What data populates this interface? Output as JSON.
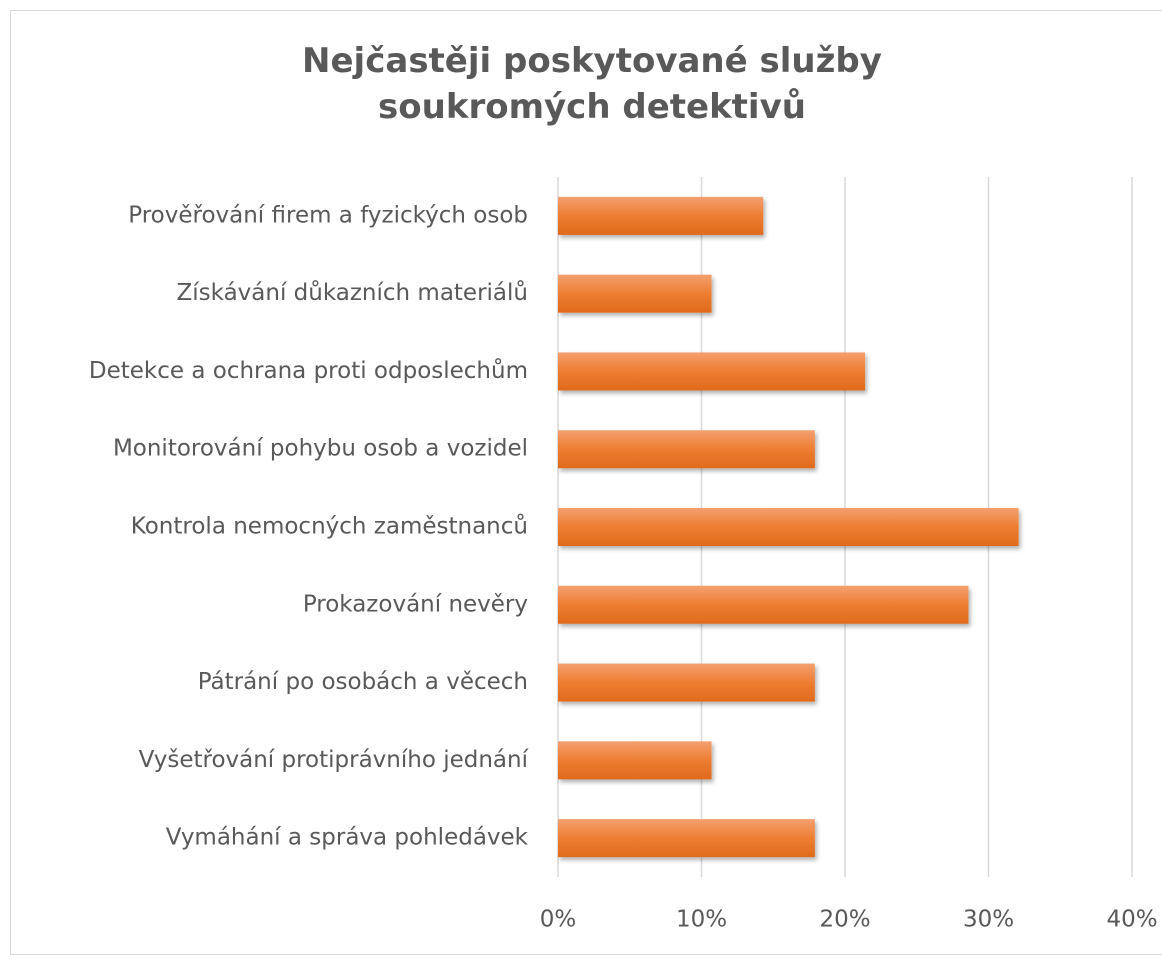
{
  "chart_data": {
    "type": "bar",
    "orientation": "horizontal",
    "title": "Nejčastěji poskytované služby soukromých detektivů",
    "categories": [
      "Prověřování firem a fyzických osob",
      "Získávání důkazních materiálů",
      "Detekce a ochrana proti odposlechům",
      "Monitorování pohybu osob a vozidel",
      "Kontrola nemocných zaměstnanců",
      "Prokazování nevěry",
      "Pátrání po osobách a věcech",
      "Vyšetřování protiprávního jednání",
      "Vymáhání a správa pohledávek"
    ],
    "values": [
      14.3,
      10.7,
      21.4,
      17.9,
      32.1,
      28.6,
      17.9,
      10.7,
      17.9
    ],
    "color": "#ed7d31",
    "xlim": [
      0,
      40
    ],
    "xticks": [
      {
        "value": 0,
        "label": "0%"
      },
      {
        "value": 10,
        "label": "10%"
      },
      {
        "value": 20,
        "label": "20%"
      },
      {
        "value": 30,
        "label": "30%"
      },
      {
        "value": 40,
        "label": "40%"
      }
    ],
    "grid": true
  }
}
